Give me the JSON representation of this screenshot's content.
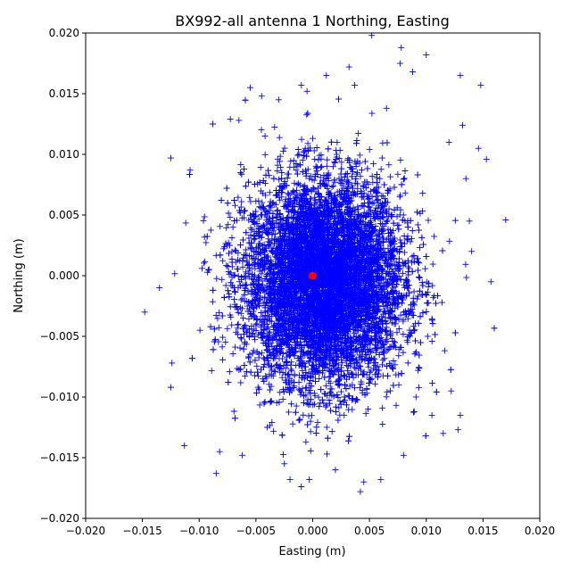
{
  "chart_data": {
    "type": "scatter",
    "title": "BX992-all antenna 1 Northing, Easting",
    "xlabel": "Easting (m)",
    "ylabel": "Northing (m)",
    "xlim": [
      -0.02,
      0.02
    ],
    "ylim": [
      -0.02,
      0.02
    ],
    "xticks": [
      "−0.020",
      "−0.015",
      "−0.010",
      "−0.005",
      "0.000",
      "0.005",
      "0.010",
      "0.015",
      "0.020"
    ],
    "yticks": [
      "−0.020",
      "−0.015",
      "−0.010",
      "−0.005",
      "0.000",
      "0.005",
      "0.010",
      "0.015",
      "0.020"
    ],
    "grid": false,
    "series": [
      {
        "marker": "plus",
        "color": "#0000ff",
        "points": [
          [
            -0.0148,
            -0.003
          ],
          [
            -0.0135,
            -0.001
          ],
          [
            -0.0125,
            0.0097
          ],
          [
            -0.0125,
            -0.0092
          ],
          [
            -0.0124,
            -0.0072
          ],
          [
            -0.0113,
            -0.014
          ],
          [
            -0.0108,
            0.0087
          ],
          [
            -0.0088,
            0.0125
          ],
          [
            -0.0085,
            -0.0163
          ],
          [
            -0.0082,
            -0.0145
          ],
          [
            -0.0065,
            0.0128
          ],
          [
            -0.0062,
            -0.0148
          ],
          [
            -0.0055,
            0.0155
          ],
          [
            -0.0045,
            0.0148
          ],
          [
            -0.004,
            -0.0125
          ],
          [
            -0.003,
            0.0145
          ],
          [
            -0.0025,
            -0.0155
          ],
          [
            -0.002,
            -0.0168
          ],
          [
            -0.001,
            0.0157
          ],
          [
            -0.0005,
            0.0152
          ],
          [
            -0.0003,
            -0.0168
          ],
          [
            0.0012,
            0.0165
          ],
          [
            0.002,
            -0.016
          ],
          [
            0.0032,
            0.0172
          ],
          [
            0.0037,
            0.0157
          ],
          [
            0.0042,
            -0.0178
          ],
          [
            0.0045,
            -0.017
          ],
          [
            0.0052,
            0.0198
          ],
          [
            0.006,
            -0.0168
          ],
          [
            0.0065,
            0.0138
          ],
          [
            0.0078,
            0.0188
          ],
          [
            0.008,
            -0.0148
          ],
          [
            0.0088,
            0.0168
          ],
          [
            0.01,
            0.0182
          ],
          [
            0.0105,
            -0.0115
          ],
          [
            0.0115,
            -0.013
          ],
          [
            0.012,
            0.011
          ],
          [
            0.0122,
            -0.0095
          ],
          [
            0.0128,
            -0.0127
          ],
          [
            0.013,
            0.0165
          ],
          [
            0.0132,
            0.0124
          ],
          [
            0.0135,
            0.008
          ],
          [
            0.0138,
            0.0045
          ],
          [
            0.014,
            0.002
          ],
          [
            0.0146,
            0.0105
          ],
          [
            0.0148,
            0.0157
          ],
          [
            0.0153,
            0.0096
          ],
          [
            0.0157,
            -0.0005
          ],
          [
            0.017,
            0.0046
          ],
          [
            0.013,
            -0.0115
          ]
        ]
      },
      {
        "marker": "circle",
        "color": "#ff0000",
        "points": [
          [
            0.0,
            0.0
          ]
        ]
      }
    ]
  }
}
